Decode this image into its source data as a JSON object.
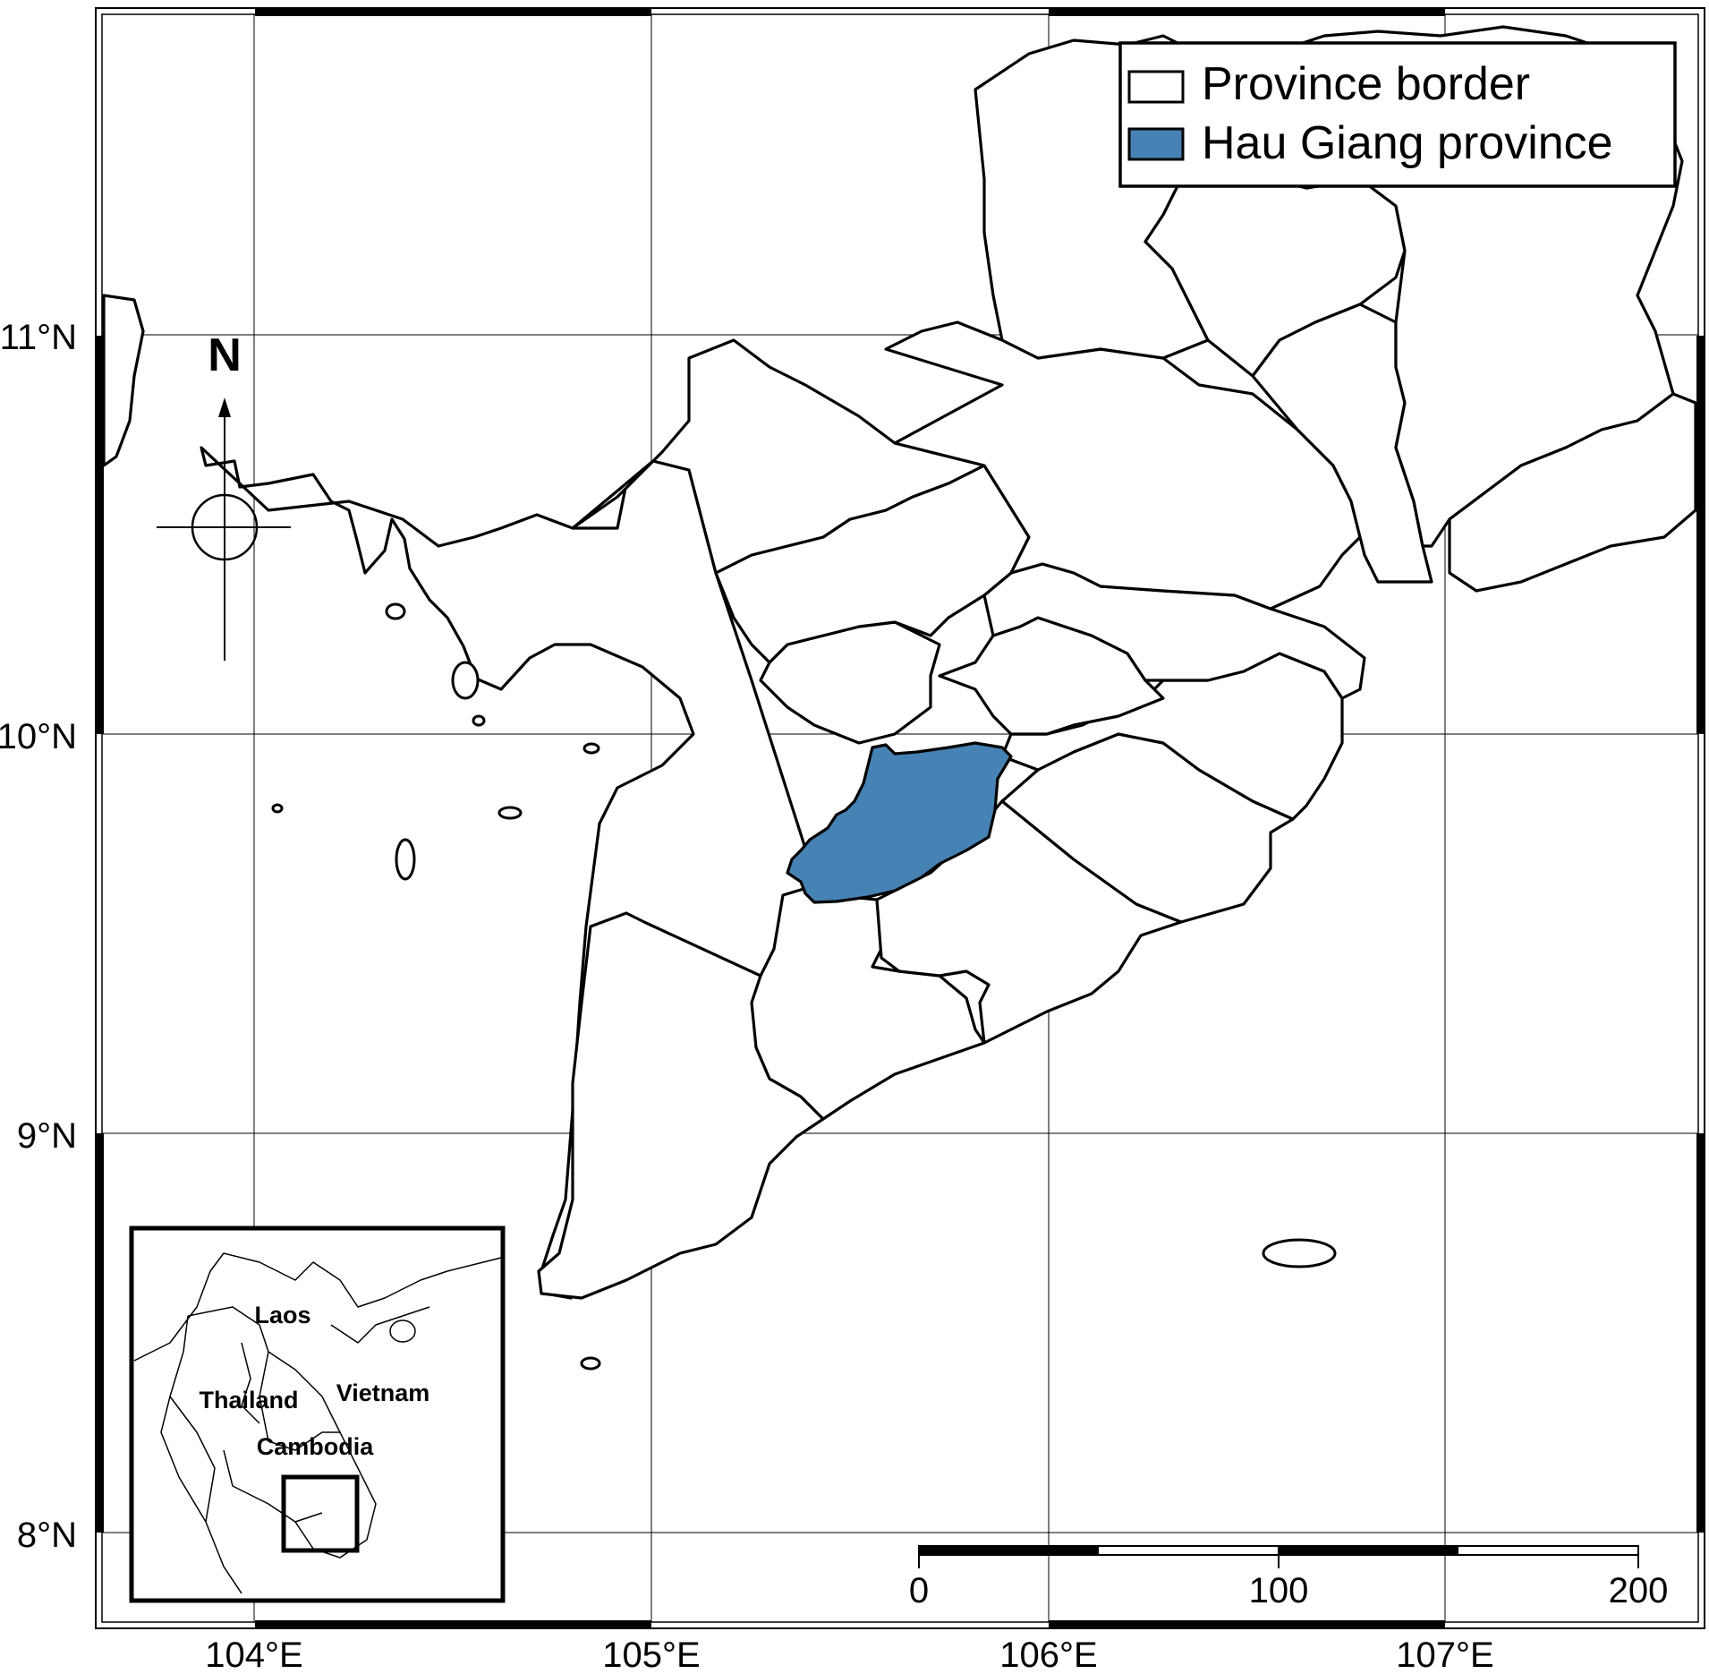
{
  "legend": {
    "items": [
      {
        "label": "Province border",
        "fill": "#ffffff"
      },
      {
        "label": "Hau Giang province",
        "fill": "#4682b4"
      }
    ]
  },
  "compass": {
    "label": "N"
  },
  "axes": {
    "lat_ticks": [
      "11°N",
      "10°N",
      "9°N",
      "8°N"
    ],
    "lon_ticks": [
      "104°E",
      "105°E",
      "106°E",
      "107°E"
    ]
  },
  "scale_bar": {
    "labels": [
      "0",
      "100",
      "200"
    ]
  },
  "inset": {
    "countries": [
      "Laos",
      "Thailand",
      "Vietnam",
      "Cambodia"
    ]
  },
  "colors": {
    "highlight": "#4682b4",
    "border": "#000000",
    "background": "#ffffff"
  }
}
